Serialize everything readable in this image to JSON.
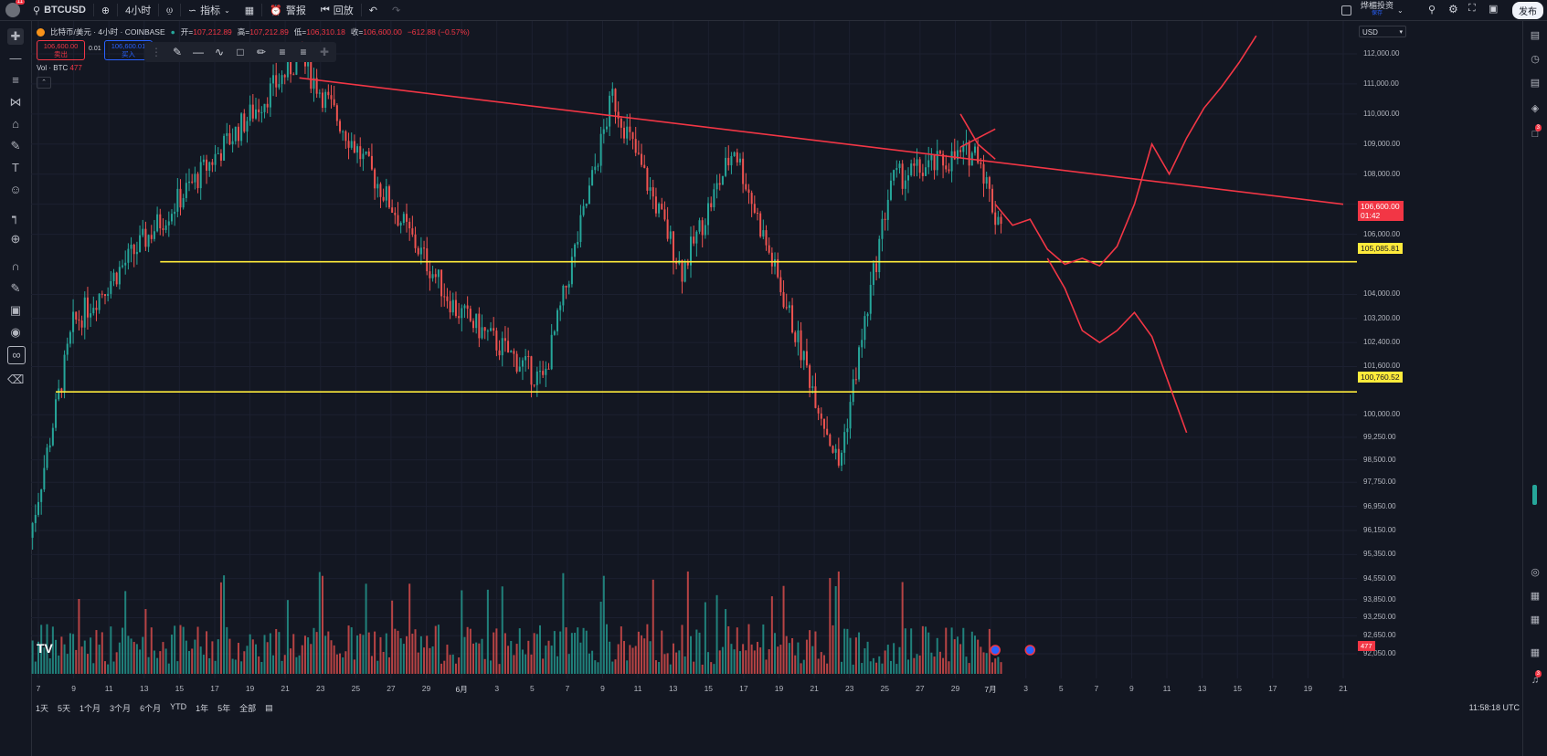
{
  "topbar": {
    "avatar_badge": "11",
    "symbol": "BTCUSD",
    "interval": "4小时",
    "indicators_label": "指标",
    "alert_label": "警报",
    "replay_label": "回放",
    "layout_name": "烨楣投资",
    "layout_sub": "保存",
    "publish_label": "发布"
  },
  "legend": {
    "title": "比特币/美元 · 4小时 · COINBASE",
    "open_label": "开=",
    "open": "107,212.89",
    "high_label": "高=",
    "high": "107,212.89",
    "low_label": "低=",
    "low": "106,310.18",
    "close_label": "收=",
    "close": "106,600.00",
    "change": "−612.88 (−0.57%)",
    "sell_price": "106,600.00",
    "sell_label": "卖出",
    "spread": "0.01",
    "buy_price": "106,600.01",
    "buy_label": "买入",
    "vol_label": "Vol · BTC",
    "vol_value": "477"
  },
  "price_axis": {
    "currency": "USD",
    "labels": [
      "112,000.00",
      "111,000.00",
      "110,000.00",
      "109,000.00",
      "108,000.00",
      "107,000.00",
      "106,000.00",
      "104,000.00",
      "103,200.00",
      "102,400.00",
      "101,600.00",
      "100,000.00",
      "99,250.00",
      "98,500.00",
      "97,750.00",
      "96,950.00",
      "96,150.00",
      "95,350.00",
      "94,550.00",
      "93,850.00",
      "93,250.00",
      "92,650.00",
      "92,050.00"
    ],
    "current_price": "106,600.00",
    "countdown": "01:42",
    "level_upper": "105,085.81",
    "level_lower": "100,760.52",
    "volume_tag": "477"
  },
  "time_axis": {
    "labels": [
      "7",
      "9",
      "11",
      "13",
      "15",
      "17",
      "19",
      "21",
      "23",
      "25",
      "27",
      "29",
      "6月",
      "3",
      "5",
      "7",
      "9",
      "11",
      "13",
      "15",
      "17",
      "19",
      "21",
      "23",
      "25",
      "27",
      "29",
      "7月",
      "3",
      "5",
      "7",
      "9",
      "11",
      "13",
      "15",
      "17",
      "19",
      "21"
    ]
  },
  "bottombar": {
    "ranges": [
      "1天",
      "5天",
      "1个月",
      "3个月",
      "6个月",
      "YTD",
      "1年",
      "5年",
      "全部"
    ],
    "clock": "11:58:18 UTC"
  },
  "right_badges": {
    "alerts": "3",
    "notifications": "3"
  },
  "colors": {
    "background": "#131722",
    "up": "#26a69a",
    "down": "#ef5350",
    "trendline": "#f23645",
    "level": "#ffeb3b"
  },
  "chart_data": {
    "type": "candlestick",
    "symbol": "BTCUSD",
    "interval": "4h",
    "y_range": [
      92050,
      112000
    ],
    "x_range": [
      "05-07",
      "07-21"
    ],
    "horizontal_levels": [
      105085.81,
      100760.52
    ],
    "trendline": {
      "from": [
        "05-22",
        111200
      ],
      "to": [
        "07-21",
        107000
      ]
    },
    "last_price": 106600,
    "last_volume": 477,
    "key_points": [
      {
        "date": "05-06",
        "price": 94500
      },
      {
        "date": "05-09",
        "price": 103000
      },
      {
        "date": "05-22",
        "price": 111900
      },
      {
        "date": "05-31",
        "price": 103500
      },
      {
        "date": "06-05",
        "price": 101100
      },
      {
        "date": "06-09",
        "price": 110600
      },
      {
        "date": "06-13",
        "price": 104800
      },
      {
        "date": "06-16",
        "price": 108900
      },
      {
        "date": "06-22",
        "price": 98300
      },
      {
        "date": "06-25",
        "price": 107800
      },
      {
        "date": "06-30",
        "price": 108800
      },
      {
        "date": "07-01",
        "price": 106600
      }
    ]
  }
}
